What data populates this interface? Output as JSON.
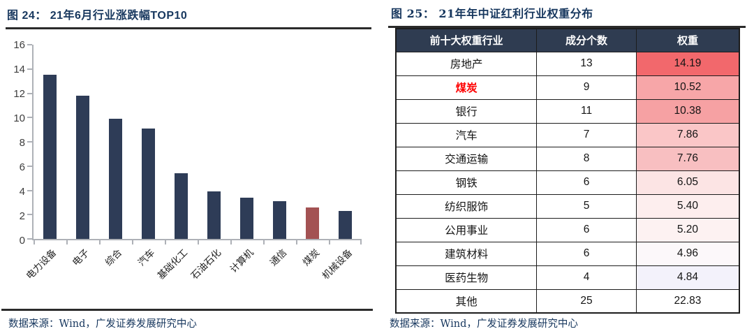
{
  "figure24": {
    "title": "图 24： 21年6月行业涨跌幅TOP10",
    "source": "数据来源：Wind，广发证券发展研究中心"
  },
  "figure25": {
    "title": "图 25： 21年年中证红利行业权重分布",
    "source": "数据来源：Wind，广发证券发展研究中心"
  },
  "chart_data": [
    {
      "type": "bar",
      "title": "21年6月行业涨跌幅TOP10",
      "categories": [
        "电力设备",
        "电子",
        "综合",
        "汽车",
        "基础化工",
        "石油石化",
        "计算机",
        "通信",
        "煤炭",
        "机械设备"
      ],
      "values": [
        13.5,
        11.8,
        9.9,
        9.1,
        5.4,
        3.9,
        3.4,
        3.1,
        2.6,
        2.3
      ],
      "highlight_index": 8,
      "bar_color": "#2e3c57",
      "highlight_color": "#a35253",
      "xlabel": "",
      "ylabel": "",
      "ylim": [
        0,
        16
      ],
      "yticks": [
        0,
        2,
        4,
        6,
        8,
        10,
        12,
        14,
        16
      ],
      "grid": false,
      "legend": false
    },
    {
      "type": "table",
      "title": "21年年中证红利行业权重分布",
      "columns": [
        "前十大权重行业",
        "成分个数",
        "权重"
      ],
      "rows": [
        {
          "industry": "房地产",
          "count": "13",
          "weight": "14.19",
          "weight_bg": "#f2686c",
          "red": false
        },
        {
          "industry": "煤炭",
          "count": "9",
          "weight": "10.52",
          "weight_bg": "#f7a6a8",
          "red": true
        },
        {
          "industry": "银行",
          "count": "11",
          "weight": "10.38",
          "weight_bg": "#f6a1a3",
          "red": false
        },
        {
          "industry": "汽车",
          "count": "7",
          "weight": "7.86",
          "weight_bg": "#fac6c7",
          "red": false
        },
        {
          "industry": "交通运输",
          "count": "8",
          "weight": "7.76",
          "weight_bg": "#f8bfc1",
          "red": false
        },
        {
          "industry": "钢铁",
          "count": "6",
          "weight": "6.05",
          "weight_bg": "#fce4e4",
          "red": false
        },
        {
          "industry": "纺织服饰",
          "count": "5",
          "weight": "5.40",
          "weight_bg": "#fdeeee",
          "red": false
        },
        {
          "industry": "公用事业",
          "count": "6",
          "weight": "5.20",
          "weight_bg": "#fdf2f2",
          "red": false
        },
        {
          "industry": "建筑材料",
          "count": "6",
          "weight": "4.96",
          "weight_bg": "#fcf8fa",
          "red": false
        },
        {
          "industry": "医药生物",
          "count": "4",
          "weight": "4.84",
          "weight_bg": "#f3f2fb",
          "red": false
        },
        {
          "industry": "其他",
          "count": "25",
          "weight": "22.83",
          "weight_bg": "#ffffff",
          "red": false
        }
      ]
    }
  ]
}
